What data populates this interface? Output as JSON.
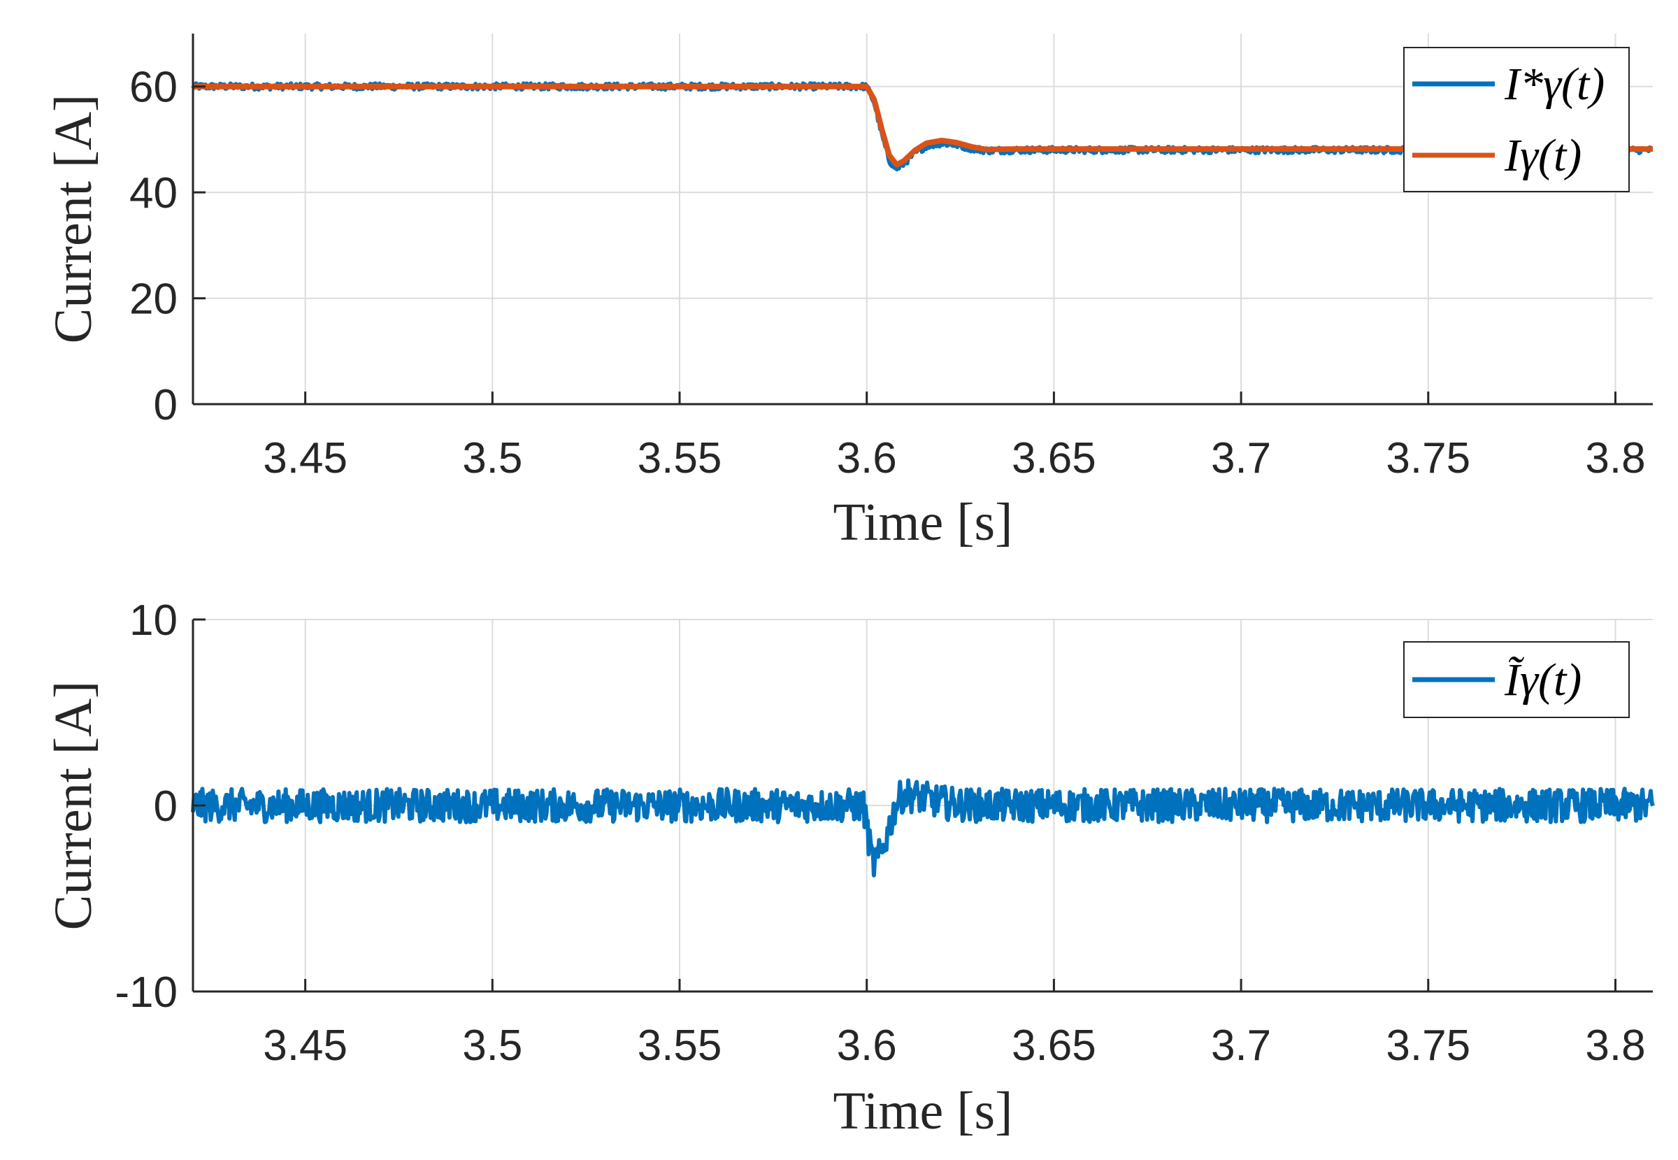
{
  "chart_data": [
    {
      "type": "line",
      "xlabel": "Time [s]",
      "ylabel": "Current [A]",
      "xlim": [
        3.42,
        3.81
      ],
      "ylim": [
        0,
        70
      ],
      "xticks": [
        3.45,
        3.5,
        3.55,
        3.6,
        3.65,
        3.7,
        3.75,
        3.8
      ],
      "xtick_labels": [
        "3.45",
        "3.5",
        "3.55",
        "3.6",
        "3.65",
        "3.7",
        "3.75",
        "3.8"
      ],
      "yticks": [
        0,
        20,
        40,
        60
      ],
      "ytick_labels": [
        "0",
        "20",
        "40",
        "60"
      ],
      "grid": true,
      "legend_position": "top-right",
      "series": [
        {
          "name": "I*γ(t)",
          "color": "#0072BD",
          "noise": 0.6,
          "x": [
            3.42,
            3.6,
            3.602,
            3.604,
            3.606,
            3.608,
            3.61,
            3.613,
            3.616,
            3.62,
            3.624,
            3.628,
            3.632,
            3.64,
            3.65,
            3.7,
            3.81
          ],
          "y": [
            60,
            60,
            57,
            51,
            46,
            44.5,
            45.5,
            47.5,
            48.8,
            49.3,
            49,
            48.3,
            47.9,
            48,
            48,
            48,
            48
          ]
        },
        {
          "name": "Iγ(t)",
          "color": "#D95319",
          "noise": 0,
          "x": [
            3.42,
            3.6,
            3.602,
            3.604,
            3.606,
            3.608,
            3.61,
            3.613,
            3.616,
            3.62,
            3.624,
            3.628,
            3.632,
            3.64,
            3.65,
            3.7,
            3.81
          ],
          "y": [
            60,
            60,
            57.5,
            52,
            47,
            45.2,
            46,
            48,
            49.3,
            49.8,
            49.4,
            48.6,
            48.1,
            48.2,
            48.2,
            48.2,
            48.2
          ]
        }
      ]
    },
    {
      "type": "line",
      "xlabel": "Time [s]",
      "ylabel": "Current [A]",
      "xlim": [
        3.42,
        3.81
      ],
      "ylim": [
        -10,
        10
      ],
      "xticks": [
        3.45,
        3.5,
        3.55,
        3.6,
        3.65,
        3.7,
        3.75,
        3.8
      ],
      "xtick_labels": [
        "3.45",
        "3.5",
        "3.55",
        "3.6",
        "3.65",
        "3.7",
        "3.75",
        "3.8"
      ],
      "yticks": [
        -10,
        0,
        10
      ],
      "ytick_labels": [
        "-10",
        "0",
        "10"
      ],
      "grid": true,
      "legend_position": "top-right",
      "series": [
        {
          "name": "Ĩγ(t)",
          "color": "#0072BD",
          "noise": 0.9,
          "x": [
            3.42,
            3.599,
            3.6,
            3.601,
            3.602,
            3.604,
            3.606,
            3.608,
            3.61,
            3.613,
            3.617,
            3.622,
            3.63,
            3.81
          ],
          "y": [
            0,
            0,
            -1,
            -2.5,
            -3.2,
            -2.5,
            -1.2,
            0.2,
            0.6,
            0.5,
            0.3,
            0.1,
            0,
            0
          ]
        }
      ]
    }
  ]
}
